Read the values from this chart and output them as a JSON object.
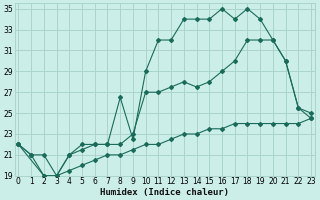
{
  "xlabel": "Humidex (Indice chaleur)",
  "bg_color": "#cceee8",
  "grid_color": "#aad4cc",
  "line_color": "#1a6b5a",
  "xlim": [
    0,
    23
  ],
  "ylim": [
    19,
    35.5
  ],
  "xticks": [
    0,
    1,
    2,
    3,
    4,
    5,
    6,
    7,
    8,
    9,
    10,
    11,
    12,
    13,
    14,
    15,
    16,
    17,
    18,
    19,
    20,
    21,
    22,
    23
  ],
  "yticks": [
    19,
    21,
    23,
    25,
    27,
    29,
    31,
    33,
    35
  ],
  "line1_x": [
    0,
    1,
    2,
    3,
    4,
    5,
    6,
    7,
    8,
    9,
    10,
    11,
    12,
    13,
    14,
    15,
    16,
    17,
    18,
    19,
    20,
    21,
    22,
    23
  ],
  "line1_y": [
    22,
    21,
    19,
    19,
    19.5,
    20,
    20.5,
    21,
    21,
    21.5,
    22,
    22,
    22.5,
    23,
    23,
    23.5,
    23.5,
    24,
    24,
    24,
    24,
    24,
    24,
    24.5
  ],
  "line2_x": [
    0,
    1,
    2,
    3,
    4,
    5,
    6,
    7,
    8,
    9,
    10,
    11,
    12,
    13,
    14,
    15,
    16,
    17,
    18,
    19,
    20,
    21,
    22,
    23
  ],
  "line2_y": [
    22,
    21,
    21,
    19,
    21,
    21.5,
    22,
    22,
    22,
    23,
    27,
    27,
    27.5,
    28,
    27.5,
    28,
    29,
    30,
    32,
    32,
    32,
    30,
    25.5,
    25
  ],
  "line3_x": [
    0,
    2,
    3,
    4,
    5,
    6,
    7,
    8,
    9,
    10,
    11,
    12,
    13,
    14,
    15,
    16,
    17,
    18,
    19,
    20,
    21,
    22,
    23
  ],
  "line3_y": [
    22,
    19,
    19,
    21,
    22,
    22,
    22,
    26.5,
    22.5,
    29,
    32,
    32,
    34,
    34,
    34,
    35,
    34,
    35,
    34,
    32,
    30,
    25.5,
    24.5
  ]
}
